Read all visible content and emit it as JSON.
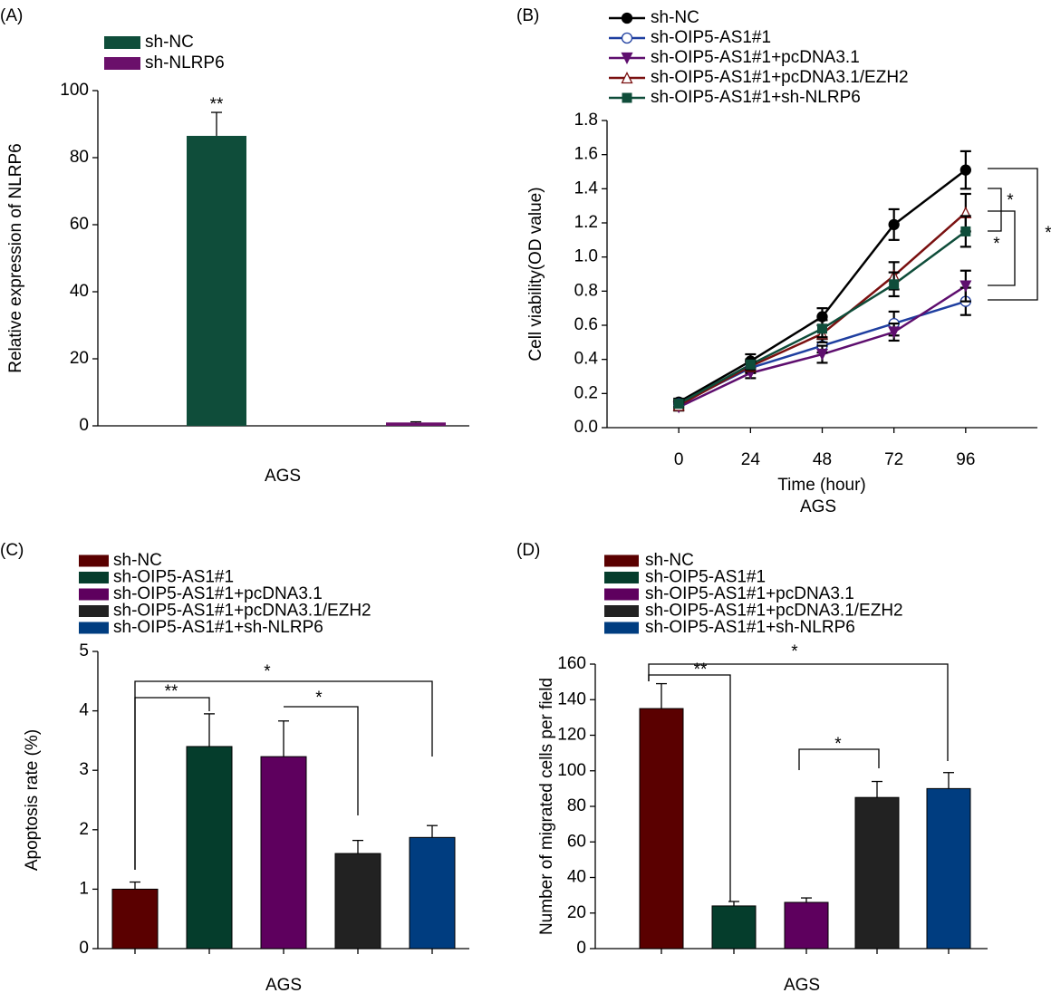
{
  "chart_data": [
    {
      "type": "bar",
      "panel_label": "(A)",
      "ylabel": "Relative expression of NLRP6",
      "xlabel": "AGS",
      "categories": [
        null
      ],
      "series": [
        {
          "name": "sh-NC",
          "color": "#0f4d3a",
          "values": [
            86.5
          ],
          "errors": [
            7
          ]
        },
        {
          "name": "sh-NLRP6",
          "color": "#6b106b",
          "values": [
            1
          ],
          "errors": [
            0.2
          ]
        }
      ],
      "ylim": [
        0,
        100
      ],
      "yticks": [
        0,
        20,
        40,
        60,
        80,
        100
      ],
      "annotations": [
        "**"
      ]
    },
    {
      "type": "line",
      "panel_label": "(B)",
      "ylabel": "Cell viability(OD value)",
      "xlabel": "Time (hour)",
      "group_label": "AGS",
      "x": [
        0,
        24,
        48,
        72,
        96
      ],
      "series": [
        {
          "name": "sh-NC",
          "color": "#000000",
          "marker": "circle",
          "values": [
            0.15,
            0.39,
            0.65,
            1.19,
            1.51
          ],
          "errors": [
            0.02,
            0.04,
            0.05,
            0.09,
            0.11
          ]
        },
        {
          "name": "sh-OIP5-AS1#1",
          "color": "#1f3fa0",
          "marker": "circle-open",
          "values": [
            0.14,
            0.35,
            0.48,
            0.61,
            0.74
          ],
          "errors": [
            0.02,
            0.03,
            0.04,
            0.07,
            0.08
          ]
        },
        {
          "name": "sh-OIP5-AS1#1+pcDNA3.1",
          "color": "#5e0e6e",
          "marker": "triangle-down",
          "values": [
            0.12,
            0.32,
            0.43,
            0.56,
            0.83
          ],
          "errors": [
            0.02,
            0.03,
            0.05,
            0.05,
            0.09
          ]
        },
        {
          "name": "sh-OIP5-AS1#1+pcDNA3.1/EZH2",
          "color": "#7a1010",
          "marker": "triangle-up-open",
          "values": [
            0.13,
            0.36,
            0.55,
            0.89,
            1.26
          ],
          "errors": [
            0.02,
            0.03,
            0.05,
            0.08,
            0.11
          ]
        },
        {
          "name": "sh-OIP5-AS1#1+sh-NLRP6",
          "color": "#0f4d3a",
          "marker": "square",
          "values": [
            0.14,
            0.37,
            0.58,
            0.84,
            1.15
          ],
          "errors": [
            0.02,
            0.03,
            0.05,
            0.07,
            0.09
          ]
        }
      ],
      "xlim": [
        -24,
        120
      ],
      "xticks": [
        0,
        24,
        48,
        72,
        96
      ],
      "ylim": [
        0,
        1.8
      ],
      "yticks": [
        {
          "value": 0,
          "label": "0.0"
        },
        0.2,
        0.4,
        0.6,
        0.8,
        {
          "value": 1,
          "label": "1.0"
        },
        1.2,
        1.4,
        1.6,
        1.8
      ],
      "annotations": [
        "*",
        "*",
        "*"
      ]
    },
    {
      "type": "bar",
      "panel_label": "(C)",
      "ylabel": "Apoptosis rate (%)",
      "xlabel": "AGS",
      "categories": [
        "sh-NC",
        "sh-OIP5-AS1#1",
        "sh-OIP5-AS1#1+pcDNA3.1",
        "sh-OIP5-AS1#1+pcDNA3.1/EZH2",
        "sh-OIP5-AS1#1+sh-NLRP6"
      ],
      "colors": [
        "#5a0000",
        "#053d2c",
        "#5e005e",
        "#222222",
        "#003d80"
      ],
      "values": [
        1.0,
        3.4,
        3.23,
        1.6,
        1.87
      ],
      "errors": [
        0.12,
        0.55,
        0.6,
        0.22,
        0.2
      ],
      "ylim": [
        0,
        5
      ],
      "yticks": [
        0,
        1,
        2,
        3,
        4,
        5
      ],
      "annotations": [
        "**",
        "*",
        "*"
      ]
    },
    {
      "type": "bar",
      "panel_label": "(D)",
      "ylabel": "Number of migrated cells per field",
      "xlabel": "AGS",
      "categories": [
        "sh-NC",
        "sh-OIP5-AS1#1",
        "sh-OIP5-AS1#1+pcDNA3.1",
        "sh-OIP5-AS1#1+pcDNA3.1/EZH2",
        "sh-OIP5-AS1#1+sh-NLRP6"
      ],
      "colors": [
        "#5a0000",
        "#053d2c",
        "#5e005e",
        "#222222",
        "#003d80"
      ],
      "values": [
        135,
        24,
        26,
        85,
        90
      ],
      "errors": [
        14,
        2.5,
        2.5,
        9,
        9
      ],
      "ylim": [
        0,
        160
      ],
      "yticks": [
        0,
        20,
        40,
        60,
        80,
        100,
        120,
        140,
        160
      ],
      "annotations": [
        "**",
        "*",
        "*"
      ]
    }
  ]
}
